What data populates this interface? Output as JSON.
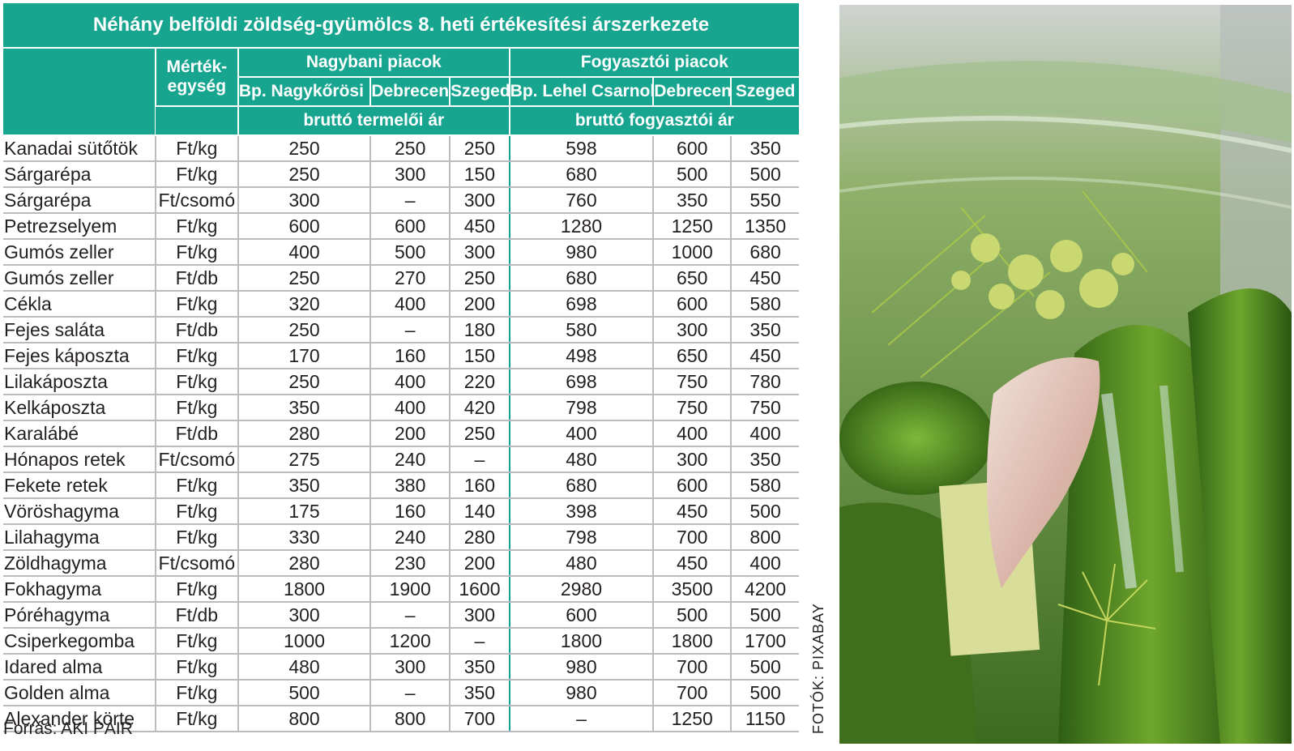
{
  "title": "Néhány belföldi zöldség-gyümölcs 8. heti értékesítési árszerkezete",
  "header": {
    "unit_label_line1": "Mérték-",
    "unit_label_line2": "egység",
    "group_wholesale": "Nagybani piacok",
    "group_consumer": "Fogyasztói piacok",
    "wholesale_markets": [
      "Bp. Nagykőrösi út",
      "Debrecen",
      "Szeged"
    ],
    "consumer_markets": [
      "Bp. Lehel Csarnok",
      "Debrecen",
      "Szeged"
    ],
    "wholesale_price_type": "bruttó termelői ár",
    "consumer_price_type": "bruttó fogyasztói ár"
  },
  "rows": [
    {
      "name": "Kanadai sütőtök",
      "unit": "Ft/kg",
      "v": [
        "250",
        "250",
        "250",
        "598",
        "600",
        "350"
      ]
    },
    {
      "name": "Sárgarépa",
      "unit": "Ft/kg",
      "v": [
        "250",
        "300",
        "150",
        "680",
        "500",
        "500"
      ]
    },
    {
      "name": "Sárgarépa",
      "unit": "Ft/csomó",
      "v": [
        "300",
        "–",
        "300",
        "760",
        "350",
        "550"
      ]
    },
    {
      "name": "Petrezselyem",
      "unit": "Ft/kg",
      "v": [
        "600",
        "600",
        "450",
        "1280",
        "1250",
        "1350"
      ]
    },
    {
      "name": "Gumós zeller",
      "unit": "Ft/kg",
      "v": [
        "400",
        "500",
        "300",
        "980",
        "1000",
        "680"
      ]
    },
    {
      "name": "Gumós zeller",
      "unit": "Ft/db",
      "v": [
        "250",
        "270",
        "250",
        "680",
        "650",
        "450"
      ]
    },
    {
      "name": "Cékla",
      "unit": "Ft/kg",
      "v": [
        "320",
        "400",
        "200",
        "698",
        "600",
        "580"
      ]
    },
    {
      "name": "Fejes saláta",
      "unit": "Ft/db",
      "v": [
        "250",
        "–",
        "180",
        "580",
        "300",
        "350"
      ]
    },
    {
      "name": "Fejes káposzta",
      "unit": "Ft/kg",
      "v": [
        "170",
        "160",
        "150",
        "498",
        "650",
        "450"
      ]
    },
    {
      "name": "Lilakáposzta",
      "unit": "Ft/kg",
      "v": [
        "250",
        "400",
        "220",
        "698",
        "750",
        "780"
      ]
    },
    {
      "name": "Kelkáposzta",
      "unit": "Ft/kg",
      "v": [
        "350",
        "400",
        "420",
        "798",
        "750",
        "750"
      ]
    },
    {
      "name": "Karalábé",
      "unit": "Ft/db",
      "v": [
        "280",
        "200",
        "250",
        "400",
        "400",
        "400"
      ]
    },
    {
      "name": "Hónapos retek",
      "unit": "Ft/csomó",
      "v": [
        "275",
        "240",
        "–",
        "480",
        "300",
        "350"
      ]
    },
    {
      "name": "Fekete retek",
      "unit": "Ft/kg",
      "v": [
        "350",
        "380",
        "160",
        "680",
        "600",
        "580"
      ]
    },
    {
      "name": "Vöröshagyma",
      "unit": "Ft/kg",
      "v": [
        "175",
        "160",
        "140",
        "398",
        "450",
        "500"
      ]
    },
    {
      "name": "Lilahagyma",
      "unit": "Ft/kg",
      "v": [
        "330",
        "240",
        "280",
        "798",
        "700",
        "800"
      ]
    },
    {
      "name": "Zöldhagyma",
      "unit": "Ft/csomó",
      "v": [
        "280",
        "230",
        "200",
        "480",
        "450",
        "400"
      ]
    },
    {
      "name": "Fokhagyma",
      "unit": "Ft/kg",
      "v": [
        "1800",
        "1900",
        "1600",
        "2980",
        "3500",
        "4200"
      ]
    },
    {
      "name": "Póréhagyma",
      "unit": "Ft/db",
      "v": [
        "300",
        "–",
        "300",
        "600",
        "500",
        "500"
      ]
    },
    {
      "name": "Csiperkegomba",
      "unit": "Ft/kg",
      "v": [
        "1000",
        "1200",
        "–",
        "1800",
        "1800",
        "1700"
      ]
    },
    {
      "name": "Idared alma",
      "unit": "Ft/kg",
      "v": [
        "480",
        "300",
        "350",
        "980",
        "700",
        "500"
      ]
    },
    {
      "name": "Golden alma",
      "unit": "Ft/kg",
      "v": [
        "500",
        "–",
        "350",
        "980",
        "700",
        "500"
      ]
    },
    {
      "name": "Alexander körte",
      "unit": "Ft/kg",
      "v": [
        "800",
        "800",
        "700",
        "–",
        "1250",
        "1150"
      ]
    }
  ],
  "source": "Forrás: AKI PÁIR",
  "photo_credit": "FOTÓK: PIXABAY",
  "colors": {
    "accent": "#17a58f",
    "rule": "#b9bbbe",
    "text": "#231f20"
  }
}
